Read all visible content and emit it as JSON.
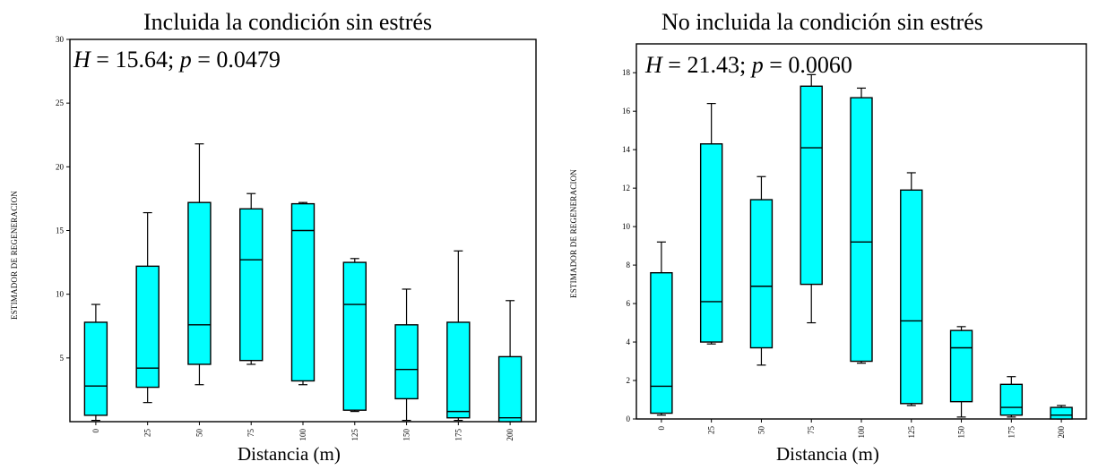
{
  "chart_data": [
    {
      "type": "boxplot",
      "title": "Incluida la condición sin estrés",
      "xlabel": "Distancia  (m)",
      "ylabel": "ESTIMADOR DE REGENERACION",
      "annotation": {
        "h_label": "H",
        "h_value": "15.64",
        "p_label": "p",
        "p_value": "0.0479"
      },
      "categories": [
        "0",
        "25",
        "50",
        "75",
        "100",
        "125",
        "150",
        "175",
        "200"
      ],
      "ylim": [
        0,
        30
      ],
      "yticks": [
        5,
        10,
        15,
        20,
        25,
        30
      ],
      "boxes": [
        {
          "min": 0.1,
          "q1": 0.5,
          "median": 2.8,
          "q3": 7.8,
          "max": 9.2
        },
        {
          "min": 1.5,
          "q1": 2.7,
          "median": 4.2,
          "q3": 12.2,
          "max": 16.4
        },
        {
          "min": 2.9,
          "q1": 4.5,
          "median": 7.6,
          "q3": 17.2,
          "max": 21.8
        },
        {
          "min": 4.5,
          "q1": 4.8,
          "median": 12.7,
          "q3": 16.7,
          "max": 17.9
        },
        {
          "min": 2.9,
          "q1": 3.2,
          "median": 15.0,
          "q3": 17.1,
          "max": 17.2
        },
        {
          "min": 0.8,
          "q1": 0.9,
          "median": 9.2,
          "q3": 12.5,
          "max": 12.8
        },
        {
          "min": 0.1,
          "q1": 1.8,
          "median": 4.1,
          "q3": 7.6,
          "max": 10.4
        },
        {
          "min": 0.1,
          "q1": 0.3,
          "median": 0.8,
          "q3": 7.8,
          "max": 13.4
        },
        {
          "min": 0.0,
          "q1": 0.0,
          "median": 0.3,
          "q3": 5.1,
          "max": 9.5
        }
      ],
      "colors": {
        "box_fill": "#00ffff",
        "stroke": "#000000"
      }
    },
    {
      "type": "boxplot",
      "title": "No incluida la condición sin estrés",
      "xlabel": "Distancia  (m)",
      "ylabel": "ESTIMADOR DE REGENERACION",
      "annotation": {
        "h_label": "H",
        "h_value": "21.43",
        "p_label": "p",
        "p_value": "0.0060"
      },
      "categories": [
        "0",
        "25",
        "50",
        "75",
        "100",
        "125",
        "150",
        "175",
        "200"
      ],
      "ylim": [
        0,
        19.5
      ],
      "yticks": [
        0,
        2,
        4,
        6,
        8,
        10,
        12,
        14,
        16,
        18
      ],
      "boxes": [
        {
          "min": 0.2,
          "q1": 0.3,
          "median": 1.7,
          "q3": 7.6,
          "max": 9.2
        },
        {
          "min": 3.9,
          "q1": 4.0,
          "median": 6.1,
          "q3": 14.3,
          "max": 16.4
        },
        {
          "min": 2.8,
          "q1": 3.7,
          "median": 6.9,
          "q3": 11.4,
          "max": 12.6
        },
        {
          "min": 5.0,
          "q1": 7.0,
          "median": 14.1,
          "q3": 17.3,
          "max": 17.9
        },
        {
          "min": 2.9,
          "q1": 3.0,
          "median": 9.2,
          "q3": 16.7,
          "max": 17.2
        },
        {
          "min": 0.7,
          "q1": 0.8,
          "median": 5.1,
          "q3": 11.9,
          "max": 12.8
        },
        {
          "min": 0.1,
          "q1": 0.9,
          "median": 3.7,
          "q3": 4.6,
          "max": 4.8
        },
        {
          "min": 0.1,
          "q1": 0.2,
          "median": 0.6,
          "q3": 1.8,
          "max": 2.2
        },
        {
          "min": 0.0,
          "q1": 0.0,
          "median": 0.2,
          "q3": 0.6,
          "max": 0.7
        }
      ],
      "colors": {
        "box_fill": "#00ffff",
        "stroke": "#000000"
      }
    }
  ]
}
